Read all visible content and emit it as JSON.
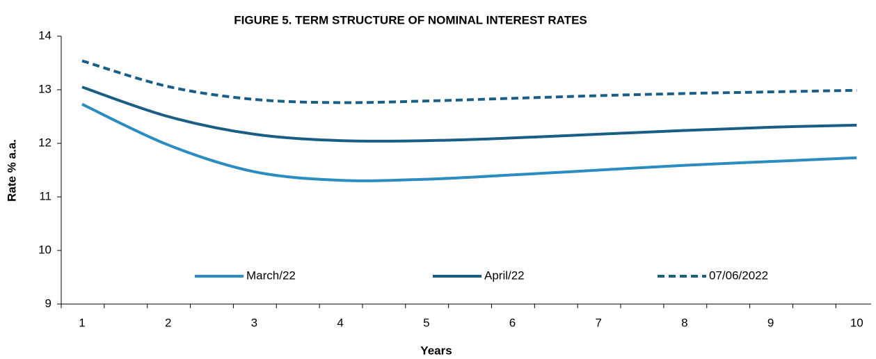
{
  "chart_data": {
    "type": "line",
    "title": "FIGURE 5. TERM STRUCTURE OF NOMINAL INTEREST RATES",
    "x_label": "Years",
    "y_label": "Rate % a.a.",
    "categories": [
      1,
      2,
      3,
      4,
      5,
      6,
      7,
      8,
      9,
      10
    ],
    "series": [
      {
        "name": "March/22",
        "color": "#2b8cc0",
        "dash": false,
        "values": [
          12.73,
          11.97,
          11.47,
          11.31,
          11.33,
          11.41,
          11.5,
          11.59,
          11.66,
          11.73
        ]
      },
      {
        "name": "April/22",
        "color": "#1b5e85",
        "dash": false,
        "values": [
          13.05,
          12.5,
          12.17,
          12.05,
          12.05,
          12.1,
          12.17,
          12.24,
          12.3,
          12.34
        ]
      },
      {
        "name": "07/06/2022",
        "color": "#1b5e85",
        "dash": true,
        "values": [
          13.54,
          13.06,
          12.82,
          12.76,
          12.79,
          12.84,
          12.89,
          12.93,
          12.96,
          12.99
        ]
      }
    ],
    "ylim": [
      9,
      14
    ],
    "yticks": [
      9,
      10,
      11,
      12,
      13,
      14
    ],
    "grid": false,
    "legend": "lower center"
  }
}
